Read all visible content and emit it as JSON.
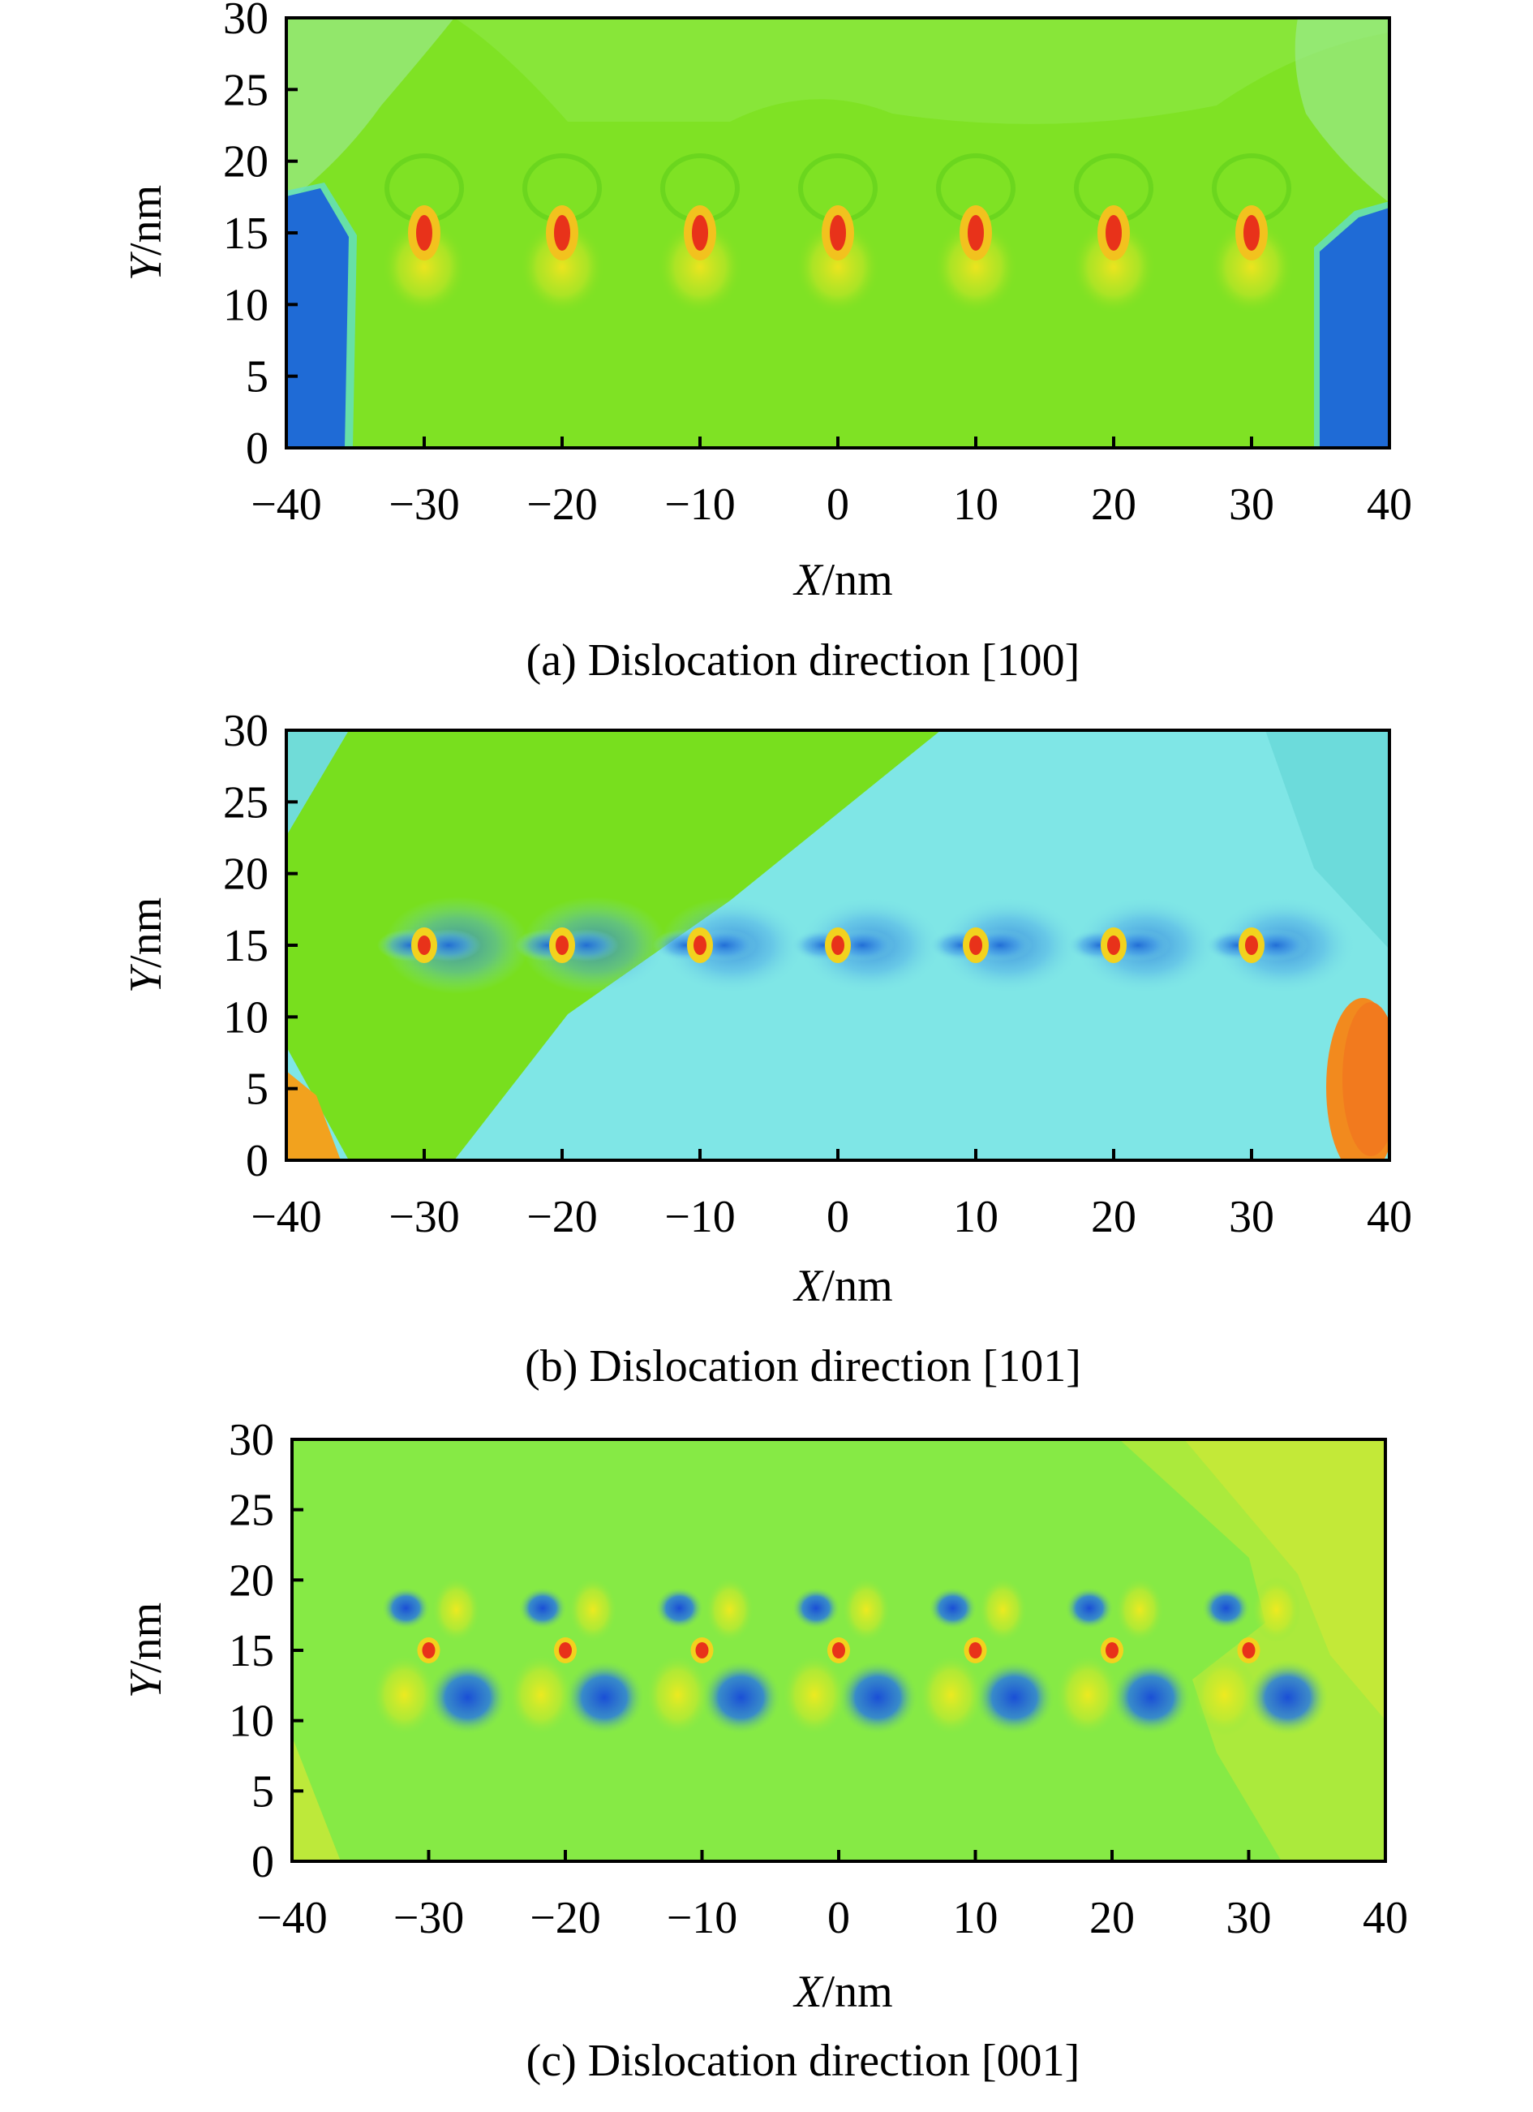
{
  "chart_data": [
    {
      "type": "heatmap",
      "caption": "(a) Dislocation direction [100]",
      "xlabel_var": "X",
      "xlabel_unit": "/nm",
      "ylabel_var": "Y",
      "ylabel_unit": "/nm",
      "xlim": [
        -40,
        40
      ],
      "ylim": [
        0,
        30
      ],
      "xticks": [
        "−40",
        "−30",
        "−20",
        "−10",
        "0",
        "10",
        "20",
        "30",
        "40"
      ],
      "yticks": [
        "0",
        "5",
        "10",
        "15",
        "20",
        "25",
        "30"
      ],
      "background_color": "#7fe224",
      "dislocations": [
        {
          "x": -30,
          "y": 15
        },
        {
          "x": -20,
          "y": 15
        },
        {
          "x": -10,
          "y": 15
        },
        {
          "x": 0,
          "y": 15
        },
        {
          "x": 10,
          "y": 15
        },
        {
          "x": 20,
          "y": 15
        },
        {
          "x": 30,
          "y": 15
        }
      ]
    },
    {
      "type": "heatmap",
      "caption": "(b) Dislocation direction [101]",
      "xlabel_var": "X",
      "xlabel_unit": "/nm",
      "ylabel_var": "Y",
      "ylabel_unit": "/nm",
      "xlim": [
        -40,
        40
      ],
      "ylim": [
        0,
        30
      ],
      "xticks": [
        "−40",
        "−30",
        "−20",
        "−10",
        "0",
        "10",
        "20",
        "30",
        "40"
      ],
      "yticks": [
        "0",
        "5",
        "10",
        "15",
        "20",
        "25",
        "30"
      ],
      "background_color": "#7fe6e6",
      "dislocations": [
        {
          "x": -30,
          "y": 15
        },
        {
          "x": -20,
          "y": 15
        },
        {
          "x": -10,
          "y": 15
        },
        {
          "x": 0,
          "y": 15
        },
        {
          "x": 10,
          "y": 15
        },
        {
          "x": 20,
          "y": 15
        },
        {
          "x": 30,
          "y": 15
        }
      ]
    },
    {
      "type": "heatmap",
      "caption": "(c) Dislocation direction [001]",
      "xlabel_var": "X",
      "xlabel_unit": "/nm",
      "ylabel_var": "Y",
      "ylabel_unit": "/nm",
      "xlim": [
        -40,
        40
      ],
      "ylim": [
        0,
        30
      ],
      "xticks": [
        "−40",
        "−30",
        "−20",
        "−10",
        "0",
        "10",
        "20",
        "30",
        "40"
      ],
      "yticks": [
        "0",
        "5",
        "10",
        "15",
        "20",
        "25",
        "30"
      ],
      "background_color": "#86ea45",
      "dislocations": [
        {
          "x": -30,
          "y": 15
        },
        {
          "x": -20,
          "y": 15
        },
        {
          "x": -10,
          "y": 15
        },
        {
          "x": 0,
          "y": 15
        },
        {
          "x": 10,
          "y": 15
        },
        {
          "x": 20,
          "y": 15
        },
        {
          "x": 30,
          "y": 15
        }
      ]
    }
  ]
}
